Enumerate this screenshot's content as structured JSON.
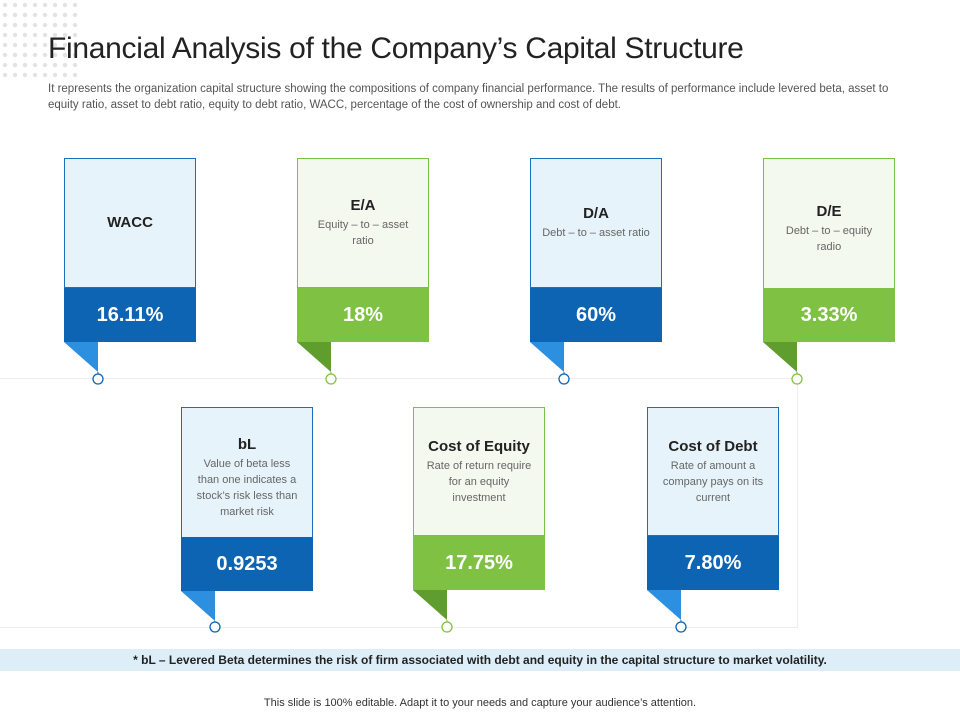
{
  "slide": {
    "title": "Financial Analysis of the Company’s Capital Structure",
    "subtitle": "It represents the organization capital structure showing the compositions of company financial performance. The results of performance include levered beta, asset to equity ratio, asset to debt ratio, equity to debt ratio, WACC,  percentage of the cost of ownership and cost of debt."
  },
  "cards": [
    {
      "label": "WACC",
      "desc": "",
      "value": "16.11%",
      "theme": "blue"
    },
    {
      "label": "E/A",
      "desc": "Equity – to – asset ratio",
      "value": "18%",
      "theme": "green"
    },
    {
      "label": "D/A",
      "desc": "Debt – to – asset ratio",
      "value": "60%",
      "theme": "blue"
    },
    {
      "label": "D/E",
      "desc": "Debt – to – equity radio",
      "value": "3.33%",
      "theme": "green"
    },
    {
      "label": "bL",
      "desc": "Value of beta less than one indicates a stock’s risk less than market risk",
      "value": "0.9253",
      "theme": "blue"
    },
    {
      "label": "Cost of Equity",
      "desc": "Rate of return require for an equity investment",
      "value": "17.75%",
      "theme": "green"
    },
    {
      "label": "Cost of Debt",
      "desc": "Rate of amount a company pays on its current",
      "value": "7.80%",
      "theme": "blue"
    }
  ],
  "footnote": "* bL – Levered Beta determines the risk of firm associated with debt and equity in the capital structure to market volatility.",
  "footer": "This slide is 100% editable. Adapt it to your needs and capture your audience’s attention.",
  "colors": {
    "blue_dark": "#0d64b3",
    "blue_light": "#e6f3fb",
    "blue_fold": "#2c8fe0",
    "green_dark": "#7fc243",
    "green_light": "#f3f9ee",
    "green_fold": "#5f9e2e"
  }
}
